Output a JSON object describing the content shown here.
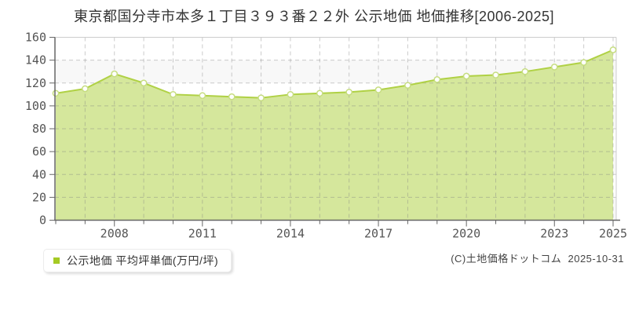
{
  "title": "東京都国分寺市本多１丁目３９３番２２外 公示地価 地価推移[2006-2025]",
  "legend": {
    "label": "公示地価 平均坪単価(万円/坪)",
    "marker_color": "#a5ca24"
  },
  "copyright": "(C)土地価格ドットコム  2025-10-31",
  "chart_data": {
    "type": "area",
    "title": "東京都国分寺市本多１丁目３９３番２２外 公示地価 地価推移[2006-2025]",
    "x": [
      2006,
      2007,
      2008,
      2009,
      2010,
      2011,
      2012,
      2013,
      2014,
      2015,
      2016,
      2017,
      2018,
      2019,
      2020,
      2021,
      2022,
      2023,
      2024,
      2025
    ],
    "series": [
      {
        "name": "公示地価 平均坪単価(万円/坪)",
        "values": [
          111,
          115,
          128,
          120,
          110,
          109,
          108,
          107,
          110,
          111,
          112,
          114,
          118,
          123,
          126,
          127,
          130,
          134,
          138,
          149
        ]
      }
    ],
    "ylabel": "",
    "xlabel": "",
    "unit": "万円/坪",
    "ylim": [
      0,
      160
    ],
    "ytick_step": 20,
    "xtick_labels": [
      2008,
      2011,
      2014,
      2017,
      2020,
      2023,
      2025
    ],
    "grid": true,
    "legend_position": "bottom-left",
    "colors": {
      "fill": "#d5e79c",
      "line": "#b0d145",
      "marker_fill": "#ffffff",
      "marker_stroke": "#c6dd80",
      "grid": "rgba(130,130,130,0.42)",
      "band": "#f8f8f8",
      "axis": "#666666",
      "border": "#cccccc"
    }
  }
}
